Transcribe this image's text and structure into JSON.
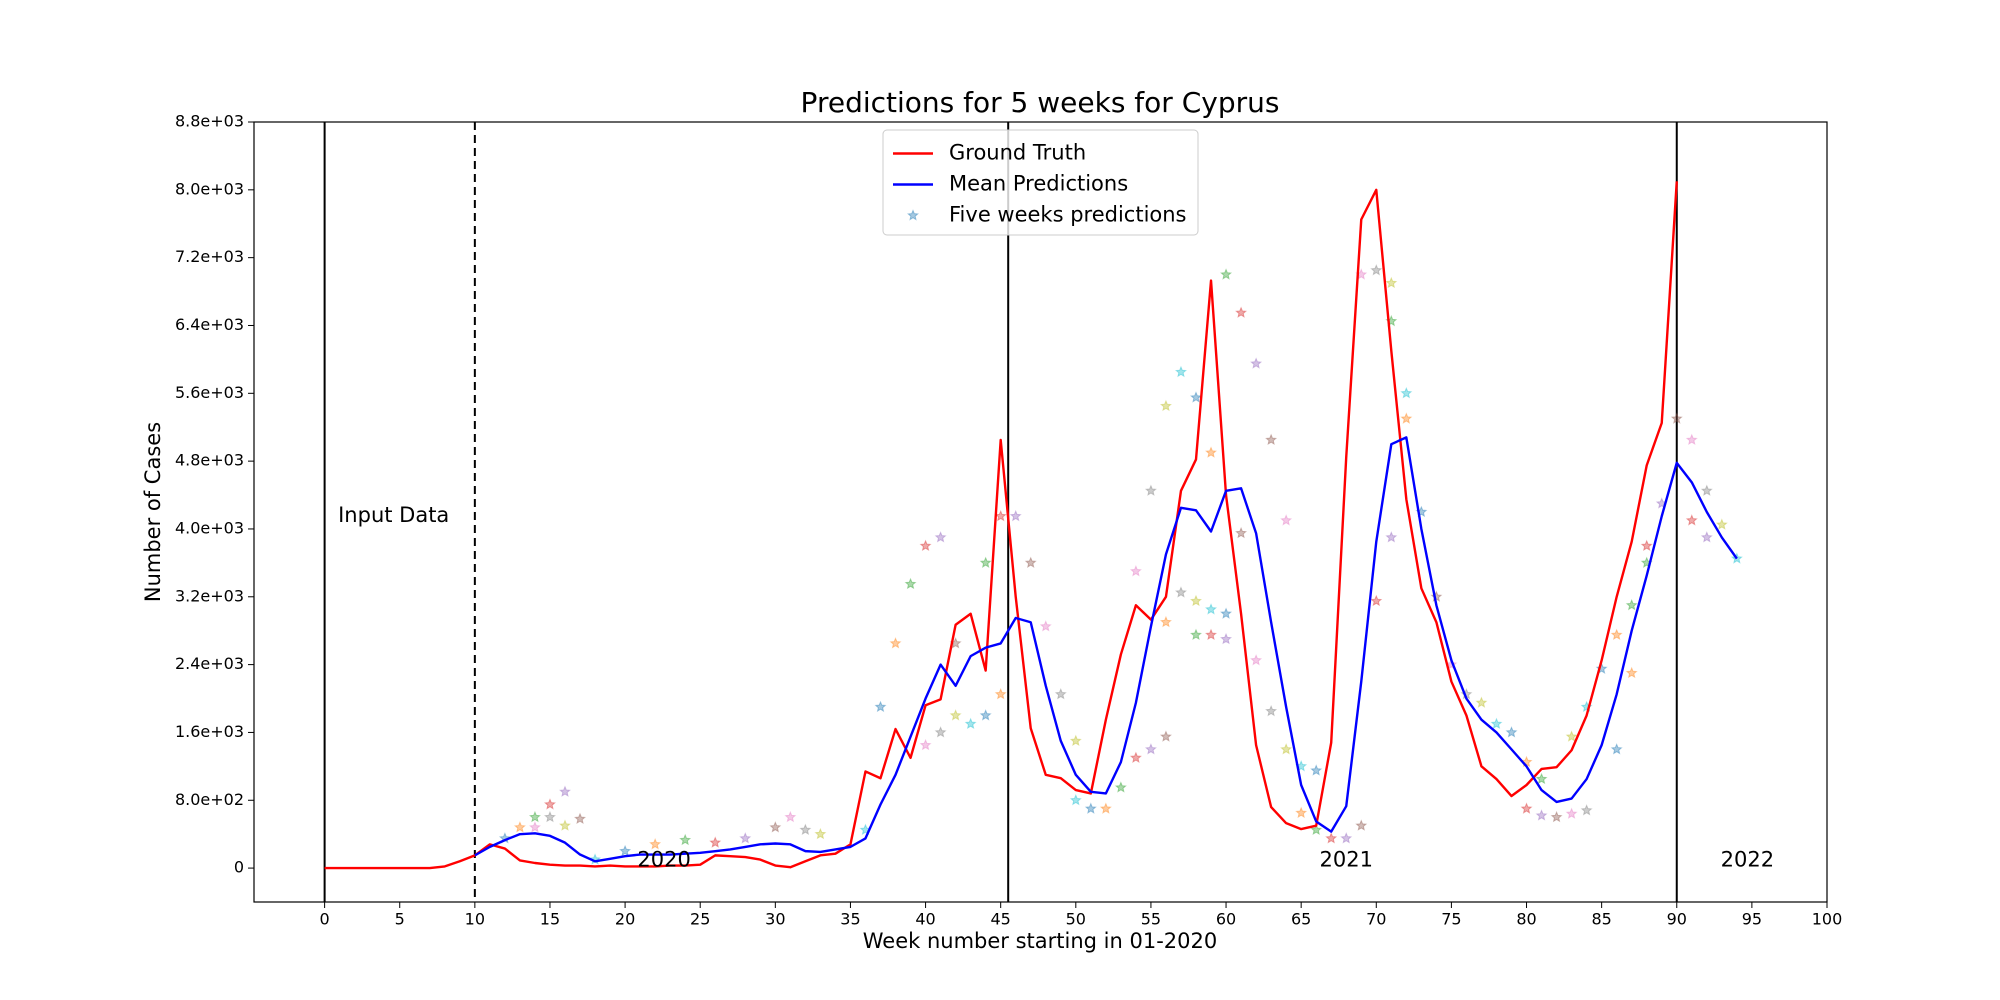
{
  "chart_data": {
    "type": "line",
    "title": "Predictions for 5 weeks for Cyprus",
    "xlabel": "Week number starting in 01-2020",
    "ylabel": "Number of Cases",
    "xlim": [
      -4.7,
      100
    ],
    "ylim": [
      -400,
      8800
    ],
    "xticks": [
      0,
      5,
      10,
      15,
      20,
      25,
      30,
      35,
      40,
      45,
      50,
      55,
      60,
      65,
      70,
      75,
      80,
      85,
      90,
      95,
      100
    ],
    "yticks": [
      0,
      {
        "value": 800,
        "label": "8.0e+02"
      },
      {
        "value": 1600,
        "label": "1.6e+03"
      },
      {
        "value": 2400,
        "label": "2.4e+03"
      },
      {
        "value": 3200,
        "label": "3.2e+03"
      },
      {
        "value": 4000,
        "label": "4.0e+03"
      },
      {
        "value": 4800,
        "label": "4.8e+03"
      },
      {
        "value": 5600,
        "label": "5.6e+03"
      },
      {
        "value": 6400,
        "label": "6.4e+03"
      },
      {
        "value": 7200,
        "label": "7.2e+03"
      },
      {
        "value": 8000,
        "label": "8.0e+03"
      },
      {
        "value": 8800,
        "label": "8.8e+03"
      }
    ],
    "legend": "upper center",
    "vlines": [
      {
        "x": 0,
        "style": "solid"
      },
      {
        "x": 10,
        "style": "dashed"
      },
      {
        "x": 45.5,
        "style": "solid"
      },
      {
        "x": 90,
        "style": "solid"
      }
    ],
    "annotations": [
      {
        "text": "Input Data",
        "x": 4.6,
        "y": 4150
      },
      {
        "text": "2020",
        "x": 22.6,
        "y": 90
      },
      {
        "text": "2021",
        "x": 68,
        "y": 90
      },
      {
        "text": "2022",
        "x": 94.7,
        "y": 90
      }
    ],
    "series": [
      {
        "name": "Ground Truth",
        "kind": "line",
        "color": "#ff0000",
        "x": [
          0,
          1,
          2,
          3,
          4,
          5,
          6,
          7,
          8,
          9,
          10,
          11,
          12,
          13,
          14,
          15,
          16,
          17,
          18,
          19,
          20,
          21,
          22,
          23,
          24,
          25,
          26,
          27,
          28,
          29,
          30,
          31,
          32,
          33,
          34,
          35,
          36,
          37,
          38,
          39,
          40,
          41,
          42,
          43,
          44,
          45,
          46,
          47,
          48,
          49,
          50,
          51,
          52,
          53,
          54,
          55,
          56,
          57,
          58,
          59,
          60,
          61,
          62,
          63,
          64,
          65,
          66,
          67,
          68,
          69,
          70,
          71,
          72,
          73,
          74,
          75,
          76,
          77,
          78,
          79,
          80,
          81,
          82,
          83,
          84,
          85,
          86,
          87,
          88,
          89,
          90
        ],
        "values": [
          0,
          0,
          0,
          0,
          0,
          0,
          0,
          0,
          20,
          80,
          150,
          280,
          230,
          90,
          60,
          40,
          30,
          30,
          20,
          30,
          20,
          20,
          20,
          30,
          30,
          40,
          150,
          140,
          130,
          100,
          30,
          10,
          80,
          150,
          170,
          280,
          1140,
          1060,
          1640,
          1300,
          1920,
          1990,
          2870,
          3000,
          2330,
          5050,
          3200,
          1650,
          1100,
          1060,
          920,
          880,
          1750,
          2520,
          3100,
          2930,
          3200,
          4450,
          4820,
          6930,
          4400,
          3000,
          1450,
          720,
          530,
          460,
          500,
          1480,
          4850,
          7650,
          8000,
          6100,
          4350,
          3300,
          2900,
          2200,
          1800,
          1200,
          1050,
          850,
          980,
          1170,
          1190,
          1390,
          1800,
          2450,
          3200,
          3850,
          4750,
          5250,
          8100
        ]
      },
      {
        "name": "Mean Predictions",
        "kind": "line",
        "color": "#0000ff",
        "x": [
          10,
          11,
          12,
          13,
          14,
          15,
          16,
          17,
          18,
          19,
          20,
          21,
          22,
          23,
          24,
          25,
          26,
          27,
          28,
          29,
          30,
          31,
          32,
          33,
          34,
          35,
          36,
          37,
          38,
          39,
          40,
          41,
          42,
          43,
          44,
          45,
          46,
          47,
          48,
          49,
          50,
          51,
          52,
          53,
          54,
          55,
          56,
          57,
          58,
          59,
          60,
          61,
          62,
          63,
          64,
          65,
          66,
          67,
          68,
          69,
          70,
          71,
          72,
          73,
          74,
          75,
          76,
          77,
          78,
          79,
          80,
          81,
          82,
          83,
          84,
          85,
          86,
          87,
          88,
          89,
          90,
          91,
          92,
          93,
          94
        ],
        "values": [
          150,
          250,
          330,
          400,
          410,
          380,
          300,
          160,
          80,
          110,
          140,
          160,
          160,
          160,
          170,
          180,
          200,
          220,
          250,
          280,
          290,
          280,
          200,
          190,
          220,
          250,
          350,
          750,
          1100,
          1550,
          2000,
          2400,
          2150,
          2500,
          2600,
          2650,
          2950,
          2900,
          2150,
          1500,
          1100,
          900,
          880,
          1250,
          1950,
          2850,
          3700,
          4250,
          4220,
          3970,
          4450,
          4480,
          3950,
          2900,
          1900,
          980,
          550,
          430,
          730,
          2200,
          3850,
          5000,
          5080,
          4000,
          3100,
          2450,
          2000,
          1750,
          1600,
          1400,
          1200,
          920,
          780,
          820,
          1050,
          1450,
          2050,
          2800,
          3450,
          4150,
          4780,
          4550,
          4200,
          3900,
          3650
        ]
      },
      {
        "name": "Five weeks predictions",
        "kind": "scatter",
        "color": "#1f77b4",
        "point_colors": [
          "#1f77b4",
          "#ff7f0e",
          "#2ca02c",
          "#d62728",
          "#9467bd",
          "#8c564b",
          "#e377c2",
          "#7f7f7f",
          "#bcbd22",
          "#17becf"
        ],
        "x": [
          12,
          13,
          14,
          15,
          16,
          17,
          14,
          15,
          16,
          18,
          20,
          22,
          24,
          26,
          28,
          30,
          31,
          32,
          33,
          36,
          37,
          38,
          39,
          40,
          41,
          42,
          40,
          41,
          42,
          43,
          44,
          45,
          44,
          45,
          46,
          47,
          48,
          49,
          50,
          50,
          51,
          52,
          53,
          54,
          55,
          56,
          54,
          55,
          56,
          57,
          58,
          59,
          60,
          61,
          62,
          63,
          64,
          57,
          58,
          59,
          60,
          56,
          58,
          59,
          60,
          61,
          62,
          63,
          64,
          65,
          66,
          65,
          66,
          67,
          68,
          69,
          69,
          70,
          71,
          72,
          73,
          72,
          71,
          70,
          71,
          74,
          75,
          76,
          77,
          78,
          79,
          80,
          81,
          80,
          81,
          82,
          83,
          84,
          83,
          84,
          85,
          86,
          87,
          88,
          89,
          90,
          91,
          92,
          93,
          94,
          86,
          87,
          88,
          91,
          92
        ],
        "values": [
          350,
          480,
          600,
          750,
          900,
          580,
          480,
          600,
          500,
          100,
          200,
          280,
          330,
          300,
          350,
          480,
          600,
          450,
          400,
          450,
          1900,
          2650,
          3350,
          3800,
          3900,
          2650,
          1450,
          1600,
          1800,
          1700,
          1800,
          2050,
          3600,
          4150,
          4150,
          3600,
          2850,
          2050,
          1500,
          800,
          700,
          700,
          950,
          1300,
          1400,
          1550,
          3500,
          4450,
          5450,
          5850,
          5550,
          4900,
          7000,
          6550,
          5950,
          5050,
          4100,
          3250,
          3150,
          3050,
          3000,
          2900,
          2750,
          2750,
          2700,
          3950,
          2450,
          1850,
          1400,
          1200,
          1150,
          650,
          450,
          350,
          350,
          500,
          7000,
          7050,
          6900,
          5600,
          4200,
          5300,
          6450,
          3150,
          3900,
          3200,
          2400,
          2050,
          1950,
          1700,
          1600,
          1250,
          1050,
          700,
          620,
          600,
          640,
          680,
          1550,
          1900,
          2350,
          2750,
          3100,
          3800,
          4300,
          5300,
          5050,
          4450,
          4050,
          3650,
          1400,
          2300,
          3600,
          4100,
          3900
        ]
      }
    ]
  }
}
